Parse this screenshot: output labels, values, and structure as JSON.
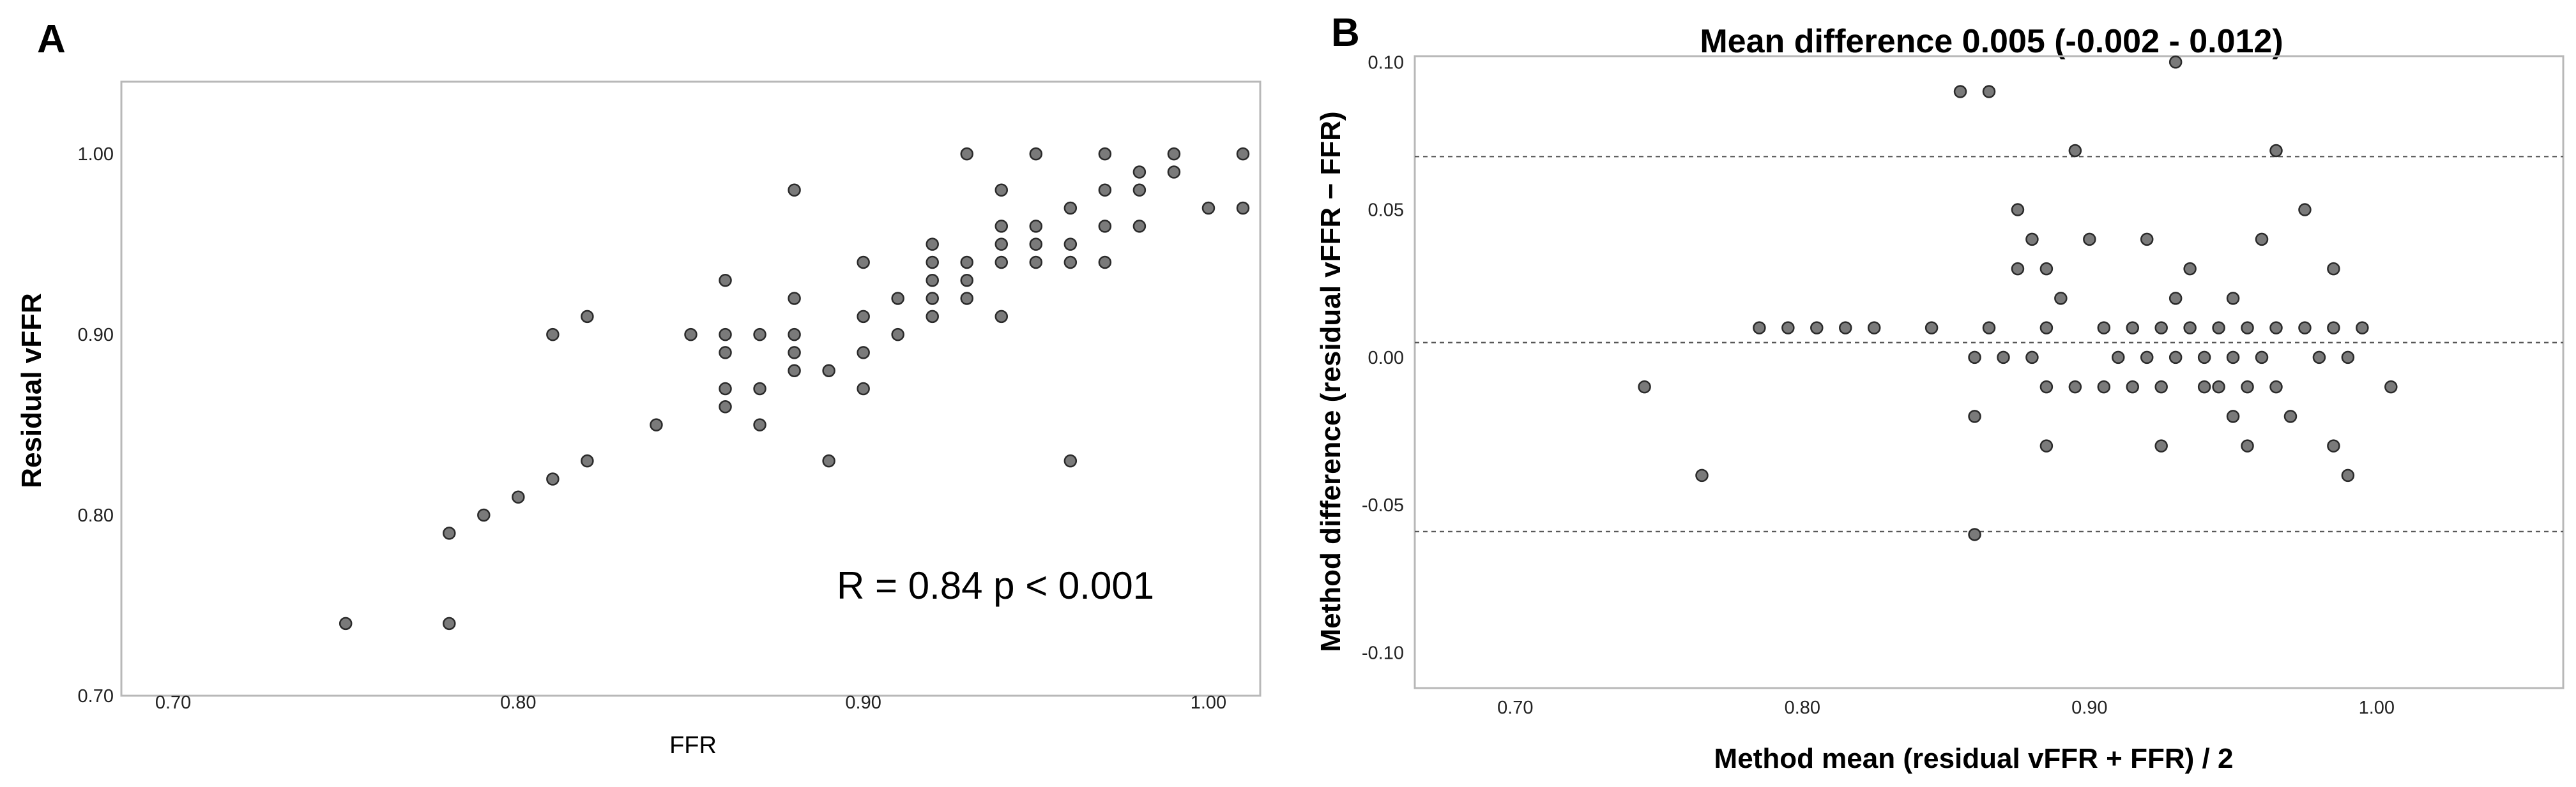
{
  "panels": {
    "a": {
      "letter": "A"
    },
    "b": {
      "letter": "B"
    }
  },
  "chart_data": [
    {
      "type": "scatter",
      "title": "",
      "xlabel": "FFR",
      "ylabel": "Residual vFFR",
      "xlim": [
        0.685,
        1.015
      ],
      "ylim": [
        0.7,
        1.04
      ],
      "xticks": [
        "0.70",
        "0.80",
        "0.90",
        "1.00"
      ],
      "yticks": [
        "0.70",
        "0.80",
        "0.90",
        "1.00"
      ],
      "annotation": "R = 0.84  p < 0.001",
      "grid": false,
      "points": [
        [
          0.75,
          0.74
        ],
        [
          0.78,
          0.74
        ],
        [
          0.78,
          0.79
        ],
        [
          0.79,
          0.8
        ],
        [
          0.8,
          0.81
        ],
        [
          0.81,
          0.82
        ],
        [
          0.81,
          0.9
        ],
        [
          0.82,
          0.83
        ],
        [
          0.82,
          0.91
        ],
        [
          0.84,
          0.85
        ],
        [
          0.85,
          0.9
        ],
        [
          0.86,
          0.86
        ],
        [
          0.86,
          0.87
        ],
        [
          0.86,
          0.89
        ],
        [
          0.86,
          0.9
        ],
        [
          0.86,
          0.93
        ],
        [
          0.87,
          0.85
        ],
        [
          0.87,
          0.87
        ],
        [
          0.87,
          0.9
        ],
        [
          0.88,
          0.88
        ],
        [
          0.88,
          0.89
        ],
        [
          0.88,
          0.9
        ],
        [
          0.88,
          0.92
        ],
        [
          0.88,
          0.98
        ],
        [
          0.89,
          0.83
        ],
        [
          0.89,
          0.88
        ],
        [
          0.9,
          0.87
        ],
        [
          0.9,
          0.89
        ],
        [
          0.9,
          0.91
        ],
        [
          0.9,
          0.94
        ],
        [
          0.91,
          0.9
        ],
        [
          0.91,
          0.92
        ],
        [
          0.92,
          0.91
        ],
        [
          0.92,
          0.92
        ],
        [
          0.92,
          0.93
        ],
        [
          0.92,
          0.94
        ],
        [
          0.92,
          0.95
        ],
        [
          0.93,
          0.92
        ],
        [
          0.93,
          0.93
        ],
        [
          0.93,
          0.94
        ],
        [
          0.93,
          1.0
        ],
        [
          0.94,
          0.91
        ],
        [
          0.94,
          0.94
        ],
        [
          0.94,
          0.95
        ],
        [
          0.94,
          0.96
        ],
        [
          0.94,
          0.98
        ],
        [
          0.95,
          0.94
        ],
        [
          0.95,
          0.95
        ],
        [
          0.95,
          0.96
        ],
        [
          0.95,
          1.0
        ],
        [
          0.96,
          0.83
        ],
        [
          0.96,
          0.94
        ],
        [
          0.96,
          0.95
        ],
        [
          0.96,
          0.97
        ],
        [
          0.97,
          0.94
        ],
        [
          0.97,
          0.96
        ],
        [
          0.97,
          0.98
        ],
        [
          0.97,
          1.0
        ],
        [
          0.98,
          0.96
        ],
        [
          0.98,
          0.98
        ],
        [
          0.98,
          0.99
        ],
        [
          0.99,
          0.99
        ],
        [
          0.99,
          1.0
        ],
        [
          1.0,
          0.97
        ],
        [
          1.01,
          0.97
        ],
        [
          1.01,
          1.0
        ]
      ]
    },
    {
      "type": "scatter",
      "title": "Mean difference 0.005 (-0.002 - 0.012)",
      "xlabel": "Method mean (residual vFFR + FFR) / 2",
      "ylabel": "Method difference (residual vFFR − FFR)",
      "xlim": [
        0.665,
        1.065
      ],
      "ylim": [
        -0.112,
        0.102
      ],
      "xticks": [
        "0.70",
        "0.80",
        "0.90",
        "1.00"
      ],
      "yticks": [
        "-0.10",
        "-0.05",
        "0.00",
        "0.05",
        "0.10"
      ],
      "reference_lines": [
        0.068,
        0.005,
        -0.059
      ],
      "grid": false,
      "points": [
        [
          0.745,
          -0.01
        ],
        [
          0.765,
          -0.04
        ],
        [
          0.785,
          0.01
        ],
        [
          0.795,
          0.01
        ],
        [
          0.805,
          0.01
        ],
        [
          0.815,
          0.01
        ],
        [
          0.825,
          0.01
        ],
        [
          0.845,
          0.01
        ],
        [
          0.855,
          0.09
        ],
        [
          0.86,
          -0.06
        ],
        [
          0.86,
          -0.02
        ],
        [
          0.86,
          0.0
        ],
        [
          0.865,
          0.09
        ],
        [
          0.865,
          0.01
        ],
        [
          0.87,
          0.0
        ],
        [
          0.875,
          0.05
        ],
        [
          0.875,
          0.03
        ],
        [
          0.88,
          0.04
        ],
        [
          0.88,
          0.0
        ],
        [
          0.885,
          0.03
        ],
        [
          0.885,
          0.01
        ],
        [
          0.885,
          -0.01
        ],
        [
          0.885,
          -0.03
        ],
        [
          0.89,
          0.02
        ],
        [
          0.895,
          0.07
        ],
        [
          0.895,
          -0.01
        ],
        [
          0.9,
          0.04
        ],
        [
          0.905,
          0.01
        ],
        [
          0.905,
          -0.01
        ],
        [
          0.91,
          0.0
        ],
        [
          0.915,
          0.01
        ],
        [
          0.915,
          -0.01
        ],
        [
          0.92,
          0.04
        ],
        [
          0.92,
          0.0
        ],
        [
          0.925,
          0.01
        ],
        [
          0.925,
          -0.01
        ],
        [
          0.925,
          -0.03
        ],
        [
          0.93,
          0.1
        ],
        [
          0.93,
          0.02
        ],
        [
          0.93,
          0.0
        ],
        [
          0.935,
          0.03
        ],
        [
          0.935,
          0.01
        ],
        [
          0.94,
          0.0
        ],
        [
          0.94,
          -0.01
        ],
        [
          0.945,
          0.01
        ],
        [
          0.945,
          -0.01
        ],
        [
          0.95,
          0.02
        ],
        [
          0.95,
          0.0
        ],
        [
          0.95,
          -0.02
        ],
        [
          0.955,
          0.01
        ],
        [
          0.955,
          -0.01
        ],
        [
          0.955,
          -0.03
        ],
        [
          0.96,
          0.04
        ],
        [
          0.96,
          0.0
        ],
        [
          0.965,
          0.07
        ],
        [
          0.965,
          0.01
        ],
        [
          0.965,
          -0.01
        ],
        [
          0.97,
          -0.02
        ],
        [
          0.975,
          0.05
        ],
        [
          0.975,
          0.01
        ],
        [
          0.98,
          0.0
        ],
        [
          0.985,
          0.03
        ],
        [
          0.985,
          0.01
        ],
        [
          0.985,
          -0.03
        ],
        [
          0.99,
          0.0
        ],
        [
          0.99,
          -0.04
        ],
        [
          0.995,
          0.01
        ],
        [
          1.005,
          -0.01
        ]
      ]
    }
  ]
}
